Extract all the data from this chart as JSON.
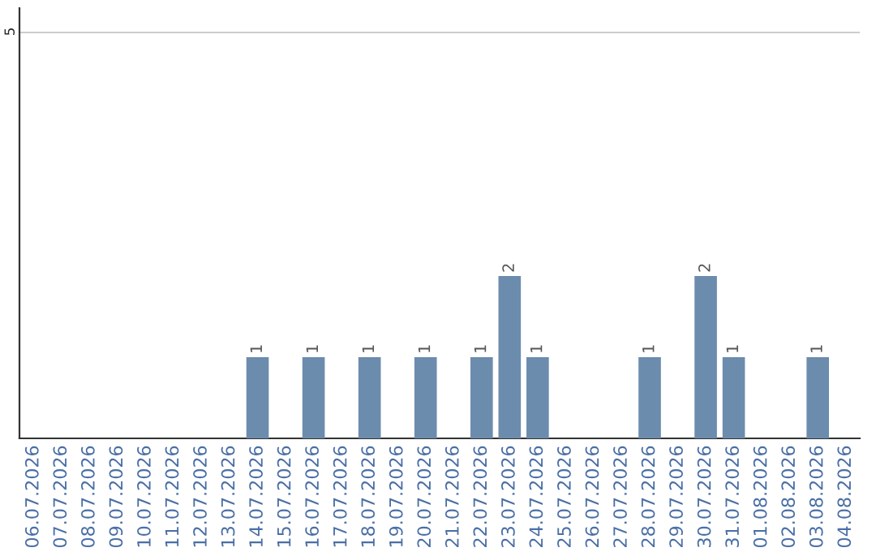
{
  "chart_data": {
    "type": "bar",
    "categories": [
      "06.07.2026",
      "07.07.2026",
      "08.07.2026",
      "09.07.2026",
      "10.07.2026",
      "11.07.2026",
      "12.07.2026",
      "13.07.2026",
      "14.07.2026",
      "15.07.2026",
      "16.07.2026",
      "17.07.2026",
      "18.07.2026",
      "19.07.2026",
      "20.07.2026",
      "21.07.2026",
      "22.07.2026",
      "23.07.2026",
      "24.07.2026",
      "25.07.2026",
      "26.07.2026",
      "27.07.2026",
      "28.07.2026",
      "29.07.2026",
      "30.07.2026",
      "31.07.2026",
      "01.08.2026",
      "02.08.2026",
      "03.08.2026",
      "04.08.2026"
    ],
    "values": [
      0,
      0,
      0,
      0,
      0,
      0,
      0,
      0,
      1,
      0,
      1,
      0,
      1,
      0,
      1,
      0,
      1,
      2,
      1,
      0,
      0,
      0,
      1,
      0,
      2,
      1,
      0,
      0,
      1,
      0
    ],
    "value_labels": [
      null,
      null,
      null,
      null,
      null,
      null,
      null,
      null,
      "1",
      null,
      "1",
      null,
      "1",
      null,
      "1",
      null,
      "1",
      "2",
      "1",
      null,
      null,
      null,
      "1",
      null,
      "2",
      "1",
      null,
      null,
      "1",
      null
    ],
    "color": "#6b8cad",
    "ylim": [
      0,
      5.3
    ],
    "yticks": [
      5
    ],
    "grid": "y"
  }
}
